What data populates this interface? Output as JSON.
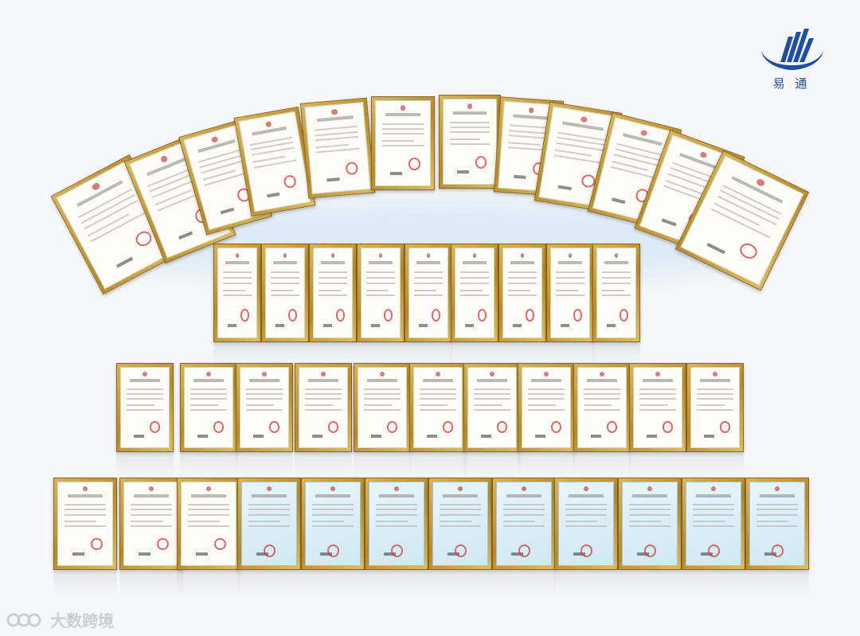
{
  "logo": {
    "name": "易 通",
    "color": "#1f4fa0"
  },
  "watermark": {
    "text": "大数跨境"
  },
  "wall": {
    "arc_row_count": 12,
    "row2_count": 9,
    "row3_count": 11,
    "row4_count": 12,
    "frame_color": "#c79a3c",
    "paper_color": "#fdfcf6",
    "software_cert_color": "#cfe8f3"
  }
}
